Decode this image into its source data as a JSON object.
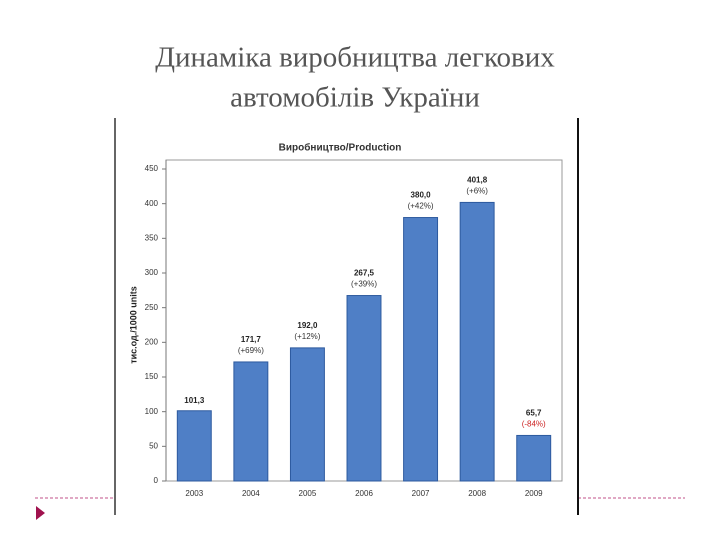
{
  "slide_title": [
    "Динаміка виробництва легкових",
    "автомобілів України"
  ],
  "chart_data": {
    "type": "bar",
    "title": "Виробництво/Production",
    "y_label": "тис.од./1000 units",
    "categories": [
      "2003",
      "2004",
      "2005",
      "2006",
      "2007",
      "2008",
      "2009"
    ],
    "values": [
      101.3,
      171.7,
      192.0,
      267.5,
      380.0,
      401.8,
      65.7
    ],
    "value_labels": [
      "101,3",
      "171,7",
      "192,0",
      "267,5",
      "380,0",
      "401,8",
      "65,7"
    ],
    "change_labels": [
      null,
      "(+69%)",
      "(+12%)",
      "(+39%)",
      "(+42%)",
      "(+6%)",
      "(-84%)"
    ],
    "change_label_colors": [
      null,
      "#333333",
      "#333333",
      "#333333",
      "#333333",
      "#333333",
      "#cc2222"
    ],
    "color": "#4f7fc6",
    "ylim": [
      0,
      450
    ],
    "yticks": [
      0,
      50,
      100,
      150,
      200,
      250,
      300,
      350,
      400,
      450
    ],
    "grid": false
  }
}
